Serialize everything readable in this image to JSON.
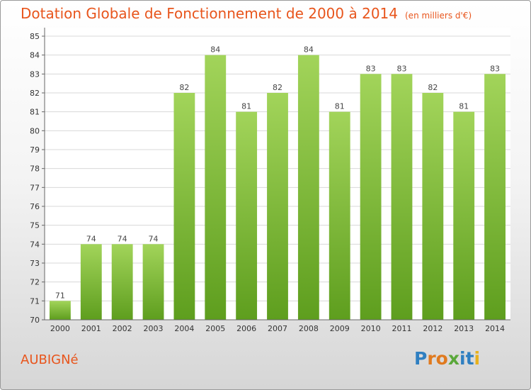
{
  "header": {
    "title": "Dotation Globale de Fonctionnement de 2000 à 2014",
    "unit": "(en milliers d'€)"
  },
  "town": "AUBIGNé",
  "logo": {
    "text": "Proxiti",
    "letters": [
      {
        "char": "P",
        "color": "#2f7fc1"
      },
      {
        "char": "r",
        "color": "#e07a1f"
      },
      {
        "char": "o",
        "color": "#e07a1f"
      },
      {
        "char": "x",
        "color": "#5aa83a"
      },
      {
        "char": "i",
        "color": "#2f7fc1"
      },
      {
        "char": "t",
        "color": "#2f7fc1"
      },
      {
        "char": "i",
        "color": "#e8b11c"
      }
    ]
  },
  "chart_data": {
    "type": "bar",
    "categories": [
      "2000",
      "2001",
      "2002",
      "2003",
      "2004",
      "2005",
      "2006",
      "2007",
      "2008",
      "2009",
      "2010",
      "2011",
      "2012",
      "2013",
      "2014"
    ],
    "values": [
      71,
      74,
      74,
      74,
      82,
      84,
      81,
      82,
      84,
      81,
      83,
      83,
      82,
      81,
      83
    ],
    "ylim": [
      70,
      85
    ],
    "yticks": [
      70,
      71,
      72,
      73,
      74,
      75,
      76,
      77,
      78,
      79,
      80,
      81,
      82,
      83,
      84,
      85
    ],
    "grid": true,
    "bar_color_top": "#a2d45a",
    "bar_color_bottom": "#5e9e1e"
  }
}
